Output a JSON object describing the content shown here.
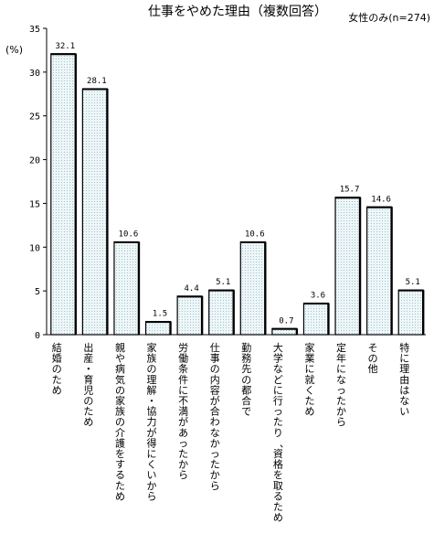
{
  "chart_data": {
    "type": "bar",
    "title": "仕事をやめた理由（複数回答）",
    "subtitle": "女性のみ(n=274)",
    "ylabel": "(%)",
    "ylim": [
      0,
      35
    ],
    "yticks": [
      0,
      5,
      10,
      15,
      20,
      25,
      30,
      35
    ],
    "categories": [
      "結婚のため",
      "出産・育児のため",
      "親や病気の家族の介護をするため",
      "家族の理解・協力が得にくいから",
      "労働条件に不満があったから",
      "仕事の内容が合わなかったから",
      "勤務先の都合で",
      "大学などに行ったり、資格を取るため",
      "家業に就くため",
      "定年になったから",
      "その他",
      "特に理由はない"
    ],
    "values": [
      32.1,
      28.1,
      10.6,
      1.5,
      4.4,
      5.1,
      10.6,
      0.7,
      3.6,
      15.7,
      14.6,
      5.1
    ],
    "value_labels": [
      "32.1",
      "28.1",
      "10.6",
      "1.5",
      "4.4",
      "5.1",
      "10.6",
      "0.7",
      "3.6",
      "15.7",
      "14.6",
      "5.1"
    ],
    "grid": false,
    "bar_fill": "#e3f0f4",
    "bar_stroke": "#000000"
  }
}
